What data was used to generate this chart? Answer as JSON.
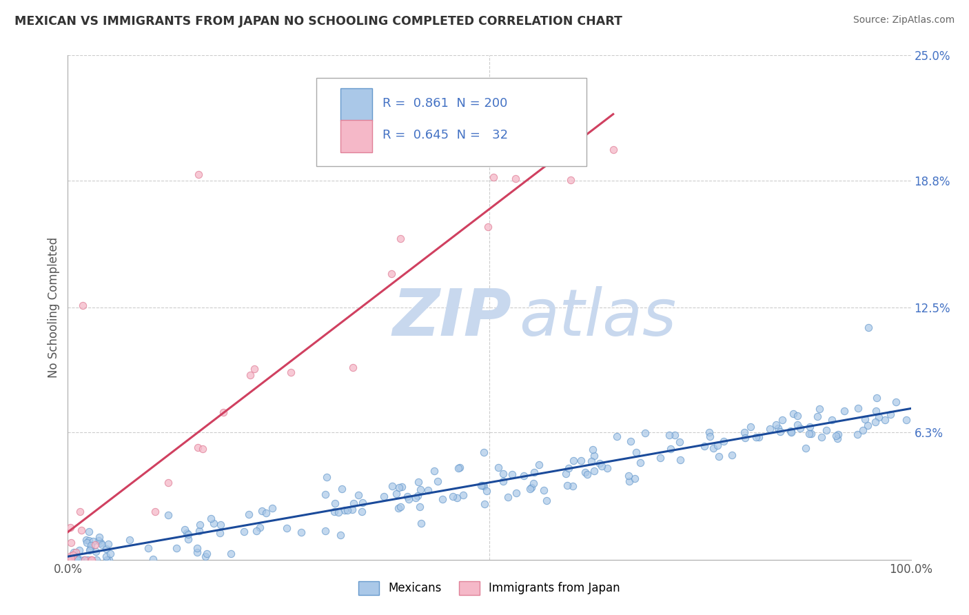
{
  "title": "MEXICAN VS IMMIGRANTS FROM JAPAN NO SCHOOLING COMPLETED CORRELATION CHART",
  "source": "Source: ZipAtlas.com",
  "ylabel": "No Schooling Completed",
  "xlim": [
    0,
    1
  ],
  "ylim": [
    0,
    0.25
  ],
  "xtick_labels": [
    "0.0%",
    "100.0%"
  ],
  "xtick_positions": [
    0,
    1
  ],
  "ytick_labels": [
    "6.3%",
    "12.5%",
    "18.8%",
    "25.0%"
  ],
  "ytick_positions": [
    0.063,
    0.125,
    0.188,
    0.25
  ],
  "R_blue": 0.861,
  "N_blue": 200,
  "R_pink": 0.645,
  "N_pink": 32,
  "blue_scatter_color": "#aac8e8",
  "blue_scatter_edge": "#6699cc",
  "pink_scatter_color": "#f5b8c8",
  "pink_scatter_edge": "#e08098",
  "blue_line_color": "#1a4a9a",
  "pink_line_color": "#d04060",
  "gray_dash_color": "#bbbbbb",
  "trend_text_color": "#4472c4",
  "legend_label_color": "#333333",
  "ytick_color": "#4472c4",
  "xtick_color": "#555555",
  "watermark_zip_color": "#c8d8ee",
  "watermark_atlas_color": "#c8d8ee",
  "background_color": "#ffffff",
  "grid_color": "#cccccc"
}
